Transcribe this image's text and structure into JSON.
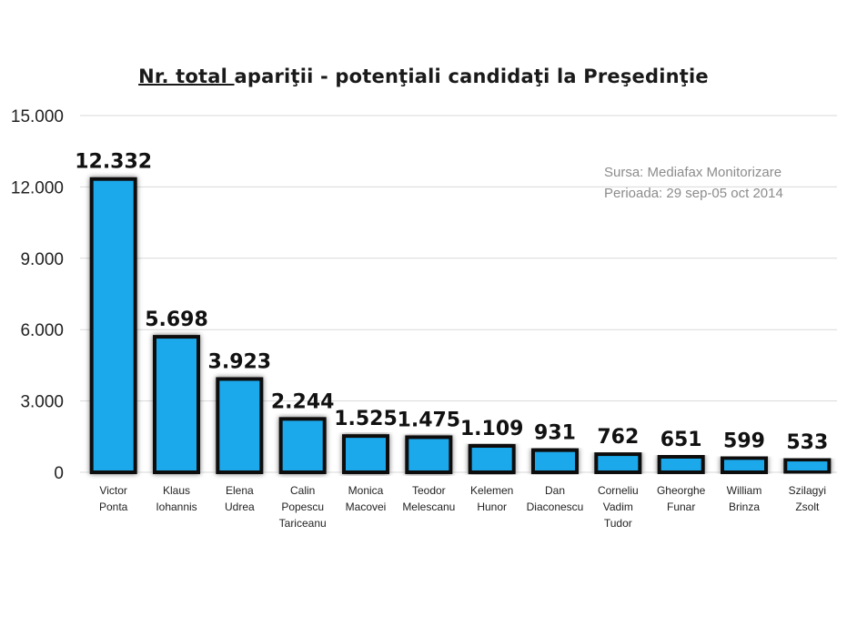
{
  "chart_data": {
    "type": "bar",
    "title_part1": "Nr. total ",
    "title_part2": "apariţii - potenţiali candidaţi la Preşedinţie",
    "source_label": "Sursa: Mediafax Monitorizare",
    "period_label": "Perioada: 29 sep-05 oct 2014",
    "categories": [
      [
        "Victor",
        "Ponta"
      ],
      [
        "Klaus",
        "Iohannis"
      ],
      [
        "Elena",
        "Udrea"
      ],
      [
        "Calin",
        "Popescu",
        "Tariceanu"
      ],
      [
        "Monica",
        "Macovei"
      ],
      [
        "Teodor",
        "Melescanu"
      ],
      [
        "Kelemen",
        "Hunor"
      ],
      [
        "Dan",
        "Diaconescu"
      ],
      [
        "Corneliu",
        "Vadim",
        "Tudor"
      ],
      [
        "Gheorghe",
        "Funar"
      ],
      [
        "William",
        "Brinza"
      ],
      [
        "Szilagyi",
        "Zsolt"
      ]
    ],
    "values": [
      12332,
      5698,
      3923,
      2244,
      1525,
      1475,
      1109,
      931,
      762,
      651,
      599,
      533
    ],
    "value_labels": [
      "12.332",
      "5.698",
      "3.923",
      "2.244",
      "1.525",
      "1.475",
      "1.109",
      "931",
      "762",
      "651",
      "599",
      "533"
    ],
    "ylim": [
      0,
      15000
    ],
    "yticks": [
      0,
      3000,
      6000,
      9000,
      12000,
      15000
    ],
    "ytick_labels": [
      "0",
      "3.000",
      "6.000",
      "9.000",
      "12.000",
      "15.000"
    ],
    "grid": true,
    "colors": {
      "bar_fill": "#1aa9ec",
      "bar_border": "#111111",
      "grid": "#d9d9d9",
      "axis_text": "#222222",
      "value_text": "#111111"
    }
  }
}
